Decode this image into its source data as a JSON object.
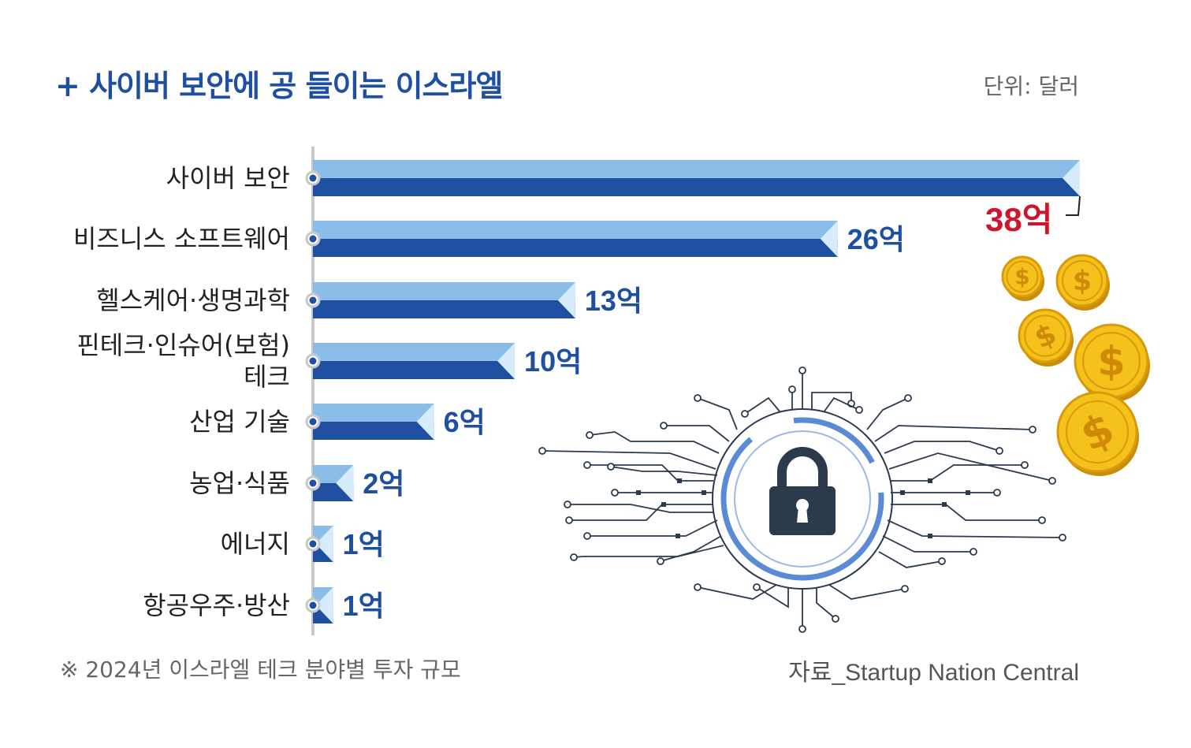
{
  "header": {
    "title": "+ 사이버 보안에 공 들이는 이스라엘",
    "unit": "단위: 달러"
  },
  "footer": {
    "note": "※ 2024년 이스라엘 테크 분야별 투자 규모",
    "source": "자료_Startup Nation Central"
  },
  "chart_data": {
    "type": "bar",
    "orientation": "horizontal",
    "title": "+ 사이버 보안에 공 들이는 이스라엘",
    "unit": "단위: 달러",
    "categories": [
      [
        "사이버 보안"
      ],
      [
        "비즈니스 소프트웨어"
      ],
      [
        "헬스케어·생명과학"
      ],
      [
        "핀테크·인슈어(보험)",
        "테크"
      ],
      [
        "산업 기술"
      ],
      [
        "농업·식품"
      ],
      [
        "에너지"
      ],
      [
        "항공우주·방산"
      ]
    ],
    "values": [
      38,
      26,
      13,
      10,
      6,
      2,
      1,
      1
    ],
    "value_labels": [
      "38억",
      "26억",
      "13억",
      "10억",
      "6억",
      "2억",
      "1억",
      "1억"
    ],
    "highlight_index": 0,
    "xlim": [
      0,
      38
    ],
    "colors": {
      "bar_top": "#8bbde9",
      "bar_bottom": "#1f4fa0",
      "bar_tip": "#d6ecfa",
      "axis": "#c8c8c8",
      "label": "#1f4fa0",
      "highlight": "#d2142b"
    }
  },
  "decor": {
    "lock_icon": "padlock-circuit-icon",
    "coin_icon": "dollar-coin-icon",
    "coin_symbol": "$"
  }
}
